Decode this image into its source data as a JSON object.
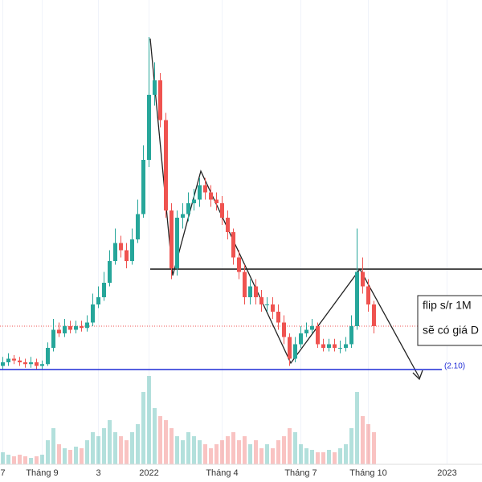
{
  "chart_data": {
    "type": "candlestick",
    "categories": [
      "7",
      null,
      null,
      null,
      null,
      null,
      null,
      "Tháng 9",
      null,
      null,
      null,
      null,
      null,
      null,
      null,
      null,
      null,
      "3",
      null,
      null,
      null,
      null,
      null,
      null,
      null,
      null,
      "2022",
      null,
      null,
      null,
      null,
      null,
      null,
      null,
      null,
      null,
      null,
      null,
      null,
      "Tháng 4",
      null,
      null,
      null,
      null,
      null,
      null,
      null,
      null,
      null,
      null,
      null,
      null,
      null,
      "Tháng 7",
      null,
      null,
      null,
      null,
      null,
      null,
      null,
      null,
      null,
      null,
      null,
      "Tháng 10",
      null,
      null,
      null,
      null,
      null,
      null,
      null,
      null,
      null,
      null,
      null,
      null,
      null,
      "2023"
    ],
    "open": [
      2.2,
      2.3,
      2.4,
      2.35,
      2.3,
      2.25,
      2.3,
      2.2,
      2.25,
      2.7,
      3.2,
      3.1,
      3.3,
      3.2,
      3.3,
      3.25,
      3.4,
      3.9,
      4.1,
      4.5,
      5.1,
      5.6,
      5.4,
      5.1,
      5.7,
      6.4,
      7.9,
      9.7,
      10.1,
      9.0,
      6.5,
      4.9,
      6.3,
      6.4,
      6.7,
      6.8,
      7.2,
      7.0,
      6.8,
      6.7,
      6.3,
      5.9,
      5.2,
      4.8,
      4.1,
      4.4,
      4.1,
      3.9,
      3.9,
      3.7,
      3.4,
      3.0,
      2.4,
      2.8,
      3.1,
      3.2,
      3.3,
      2.8,
      2.7,
      2.8,
      2.7,
      2.7,
      2.8,
      3.3,
      4.8,
      4.4,
      3.9,
      null,
      null,
      null,
      null,
      null,
      null,
      null,
      null,
      null,
      null,
      null,
      null,
      null
    ],
    "high": [
      2.45,
      2.55,
      2.5,
      2.45,
      2.4,
      2.45,
      2.4,
      2.35,
      2.85,
      3.5,
      3.4,
      3.5,
      3.45,
      3.45,
      3.45,
      3.6,
      4.2,
      4.4,
      4.8,
      5.4,
      6.0,
      5.8,
      5.6,
      6.0,
      6.8,
      8.3,
      11.3,
      10.6,
      10.3,
      9.2,
      6.7,
      6.5,
      6.7,
      7.0,
      7.1,
      7.4,
      7.4,
      7.2,
      7.0,
      6.9,
      6.5,
      6.0,
      5.4,
      5.0,
      4.6,
      4.6,
      4.3,
      4.1,
      4.1,
      3.9,
      3.6,
      3.1,
      3.0,
      3.3,
      3.4,
      3.5,
      3.4,
      2.95,
      2.95,
      2.95,
      2.9,
      3.0,
      3.6,
      6.0,
      5.2,
      4.6,
      4.0,
      null,
      null,
      null,
      null,
      null,
      null,
      null,
      null,
      null,
      null,
      null,
      null,
      null
    ],
    "low": [
      2.1,
      2.2,
      2.25,
      2.2,
      2.15,
      2.15,
      2.1,
      2.1,
      2.2,
      2.6,
      3.0,
      3.0,
      3.1,
      3.1,
      3.15,
      3.15,
      3.3,
      3.8,
      4.0,
      4.4,
      5.0,
      5.2,
      4.9,
      5.0,
      5.6,
      6.3,
      7.7,
      9.4,
      8.8,
      6.3,
      4.6,
      4.7,
      6.0,
      6.2,
      6.5,
      6.6,
      6.8,
      6.6,
      6.5,
      6.1,
      5.7,
      5.0,
      4.6,
      3.9,
      3.9,
      3.9,
      3.7,
      3.7,
      3.5,
      3.2,
      2.8,
      2.2,
      2.3,
      2.7,
      3.0,
      3.1,
      2.7,
      2.6,
      2.6,
      2.6,
      2.55,
      2.6,
      2.7,
      3.2,
      4.2,
      3.7,
      3.1,
      null,
      null,
      null,
      null,
      null,
      null,
      null,
      null,
      null,
      null,
      null,
      null,
      null
    ],
    "close": [
      2.3,
      2.4,
      2.35,
      2.3,
      2.25,
      2.3,
      2.2,
      2.25,
      2.7,
      3.2,
      3.1,
      3.3,
      3.2,
      3.3,
      3.25,
      3.4,
      3.9,
      4.1,
      4.5,
      5.1,
      5.6,
      5.4,
      5.1,
      5.7,
      6.4,
      7.9,
      9.7,
      10.1,
      9.0,
      6.5,
      4.9,
      6.3,
      6.4,
      6.7,
      6.8,
      7.2,
      7.0,
      6.8,
      6.7,
      6.3,
      5.9,
      5.2,
      4.8,
      4.1,
      4.4,
      4.1,
      3.9,
      3.9,
      3.7,
      3.4,
      3.0,
      2.4,
      2.8,
      3.1,
      3.2,
      3.3,
      2.8,
      2.7,
      2.8,
      2.7,
      2.7,
      2.8,
      3.3,
      4.8,
      4.4,
      3.9,
      3.3,
      null,
      null,
      null,
      null,
      null,
      null,
      null,
      null,
      null,
      null,
      null,
      null,
      null
    ],
    "volume": [
      15,
      12,
      10,
      12,
      10,
      8,
      10,
      12,
      30,
      45,
      25,
      20,
      18,
      22,
      20,
      30,
      40,
      35,
      45,
      55,
      40,
      35,
      30,
      40,
      50,
      90,
      110,
      70,
      60,
      55,
      45,
      35,
      30,
      40,
      35,
      30,
      25,
      20,
      25,
      30,
      35,
      40,
      30,
      35,
      25,
      30,
      20,
      25,
      20,
      30,
      35,
      45,
      40,
      25,
      20,
      18,
      15,
      15,
      18,
      15,
      20,
      25,
      45,
      90,
      60,
      50,
      40,
      null,
      null,
      null,
      null,
      null,
      null,
      null,
      null,
      null,
      null,
      null,
      null,
      null
    ],
    "up_color": "#26a69a",
    "down_color": "#ef5350",
    "ylim": [
      2,
      12
    ],
    "volume_lim": [
      0,
      120
    ],
    "support": {
      "value": 2.1,
      "label": "(2.10)",
      "color": "#1e2bd6"
    },
    "annotation": [
      "flip s/r 1M",
      "sẽ có giá D"
    ],
    "grid": true
  }
}
